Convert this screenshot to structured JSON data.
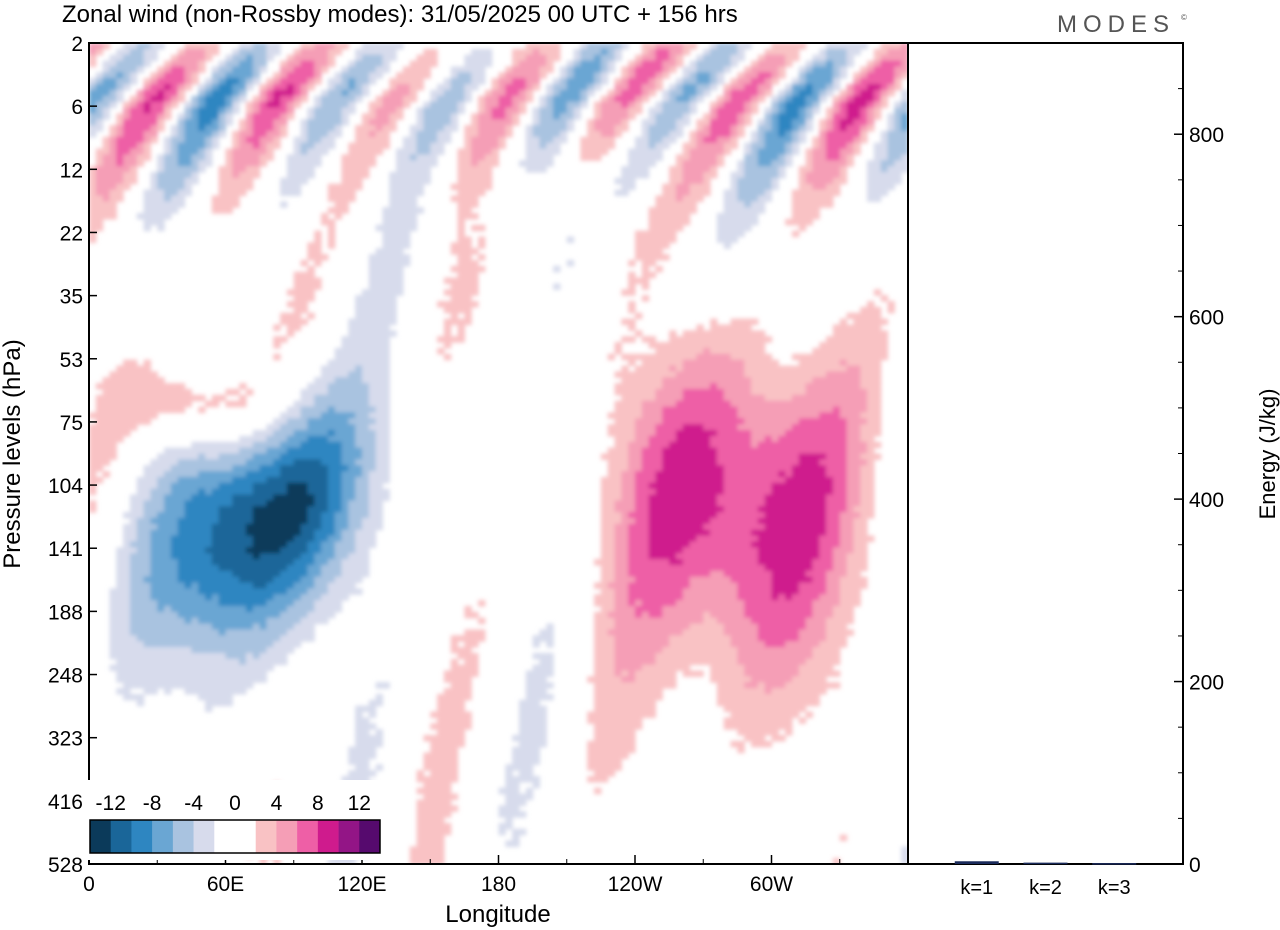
{
  "header": {
    "title": "Zonal wind (non-Rossby modes):  31/05/2025  00 UTC  + 156 hrs",
    "brand": "MODES",
    "brand_mark": "©"
  },
  "chart_data": [
    {
      "type": "heatmap",
      "xlabel": "Longitude",
      "ylabel": "Pressure levels (hPa)",
      "x_ticks": [
        "0",
        "60E",
        "120E",
        "180",
        "120W",
        "60W"
      ],
      "x_tick_degrees": [
        0,
        60,
        120,
        180,
        240,
        300
      ],
      "xlim": [
        0,
        360
      ],
      "y_ticks": [
        "2",
        "6",
        "12",
        "22",
        "35",
        "53",
        "75",
        "104",
        "141",
        "188",
        "248",
        "323",
        "416",
        "528"
      ],
      "colorbar": {
        "tick_labels": [
          "-12",
          "-8",
          "-4",
          "0",
          "4",
          "8",
          "12"
        ],
        "levels": [
          -14,
          -12,
          -10,
          -8,
          -6,
          -4,
          -2,
          0,
          2,
          4,
          6,
          8,
          10,
          12,
          14
        ],
        "colors": [
          "#0b3a5a",
          "#1a6699",
          "#2e86c1",
          "#6aa6d3",
          "#a9c3e0",
          "#d7dbec",
          "#ffffff",
          "#ffffff",
          "#f9c2c4",
          "#f59eb6",
          "#ee5fa6",
          "#cf1b8d",
          "#931586",
          "#560a6e"
        ]
      },
      "features": [
        {
          "kind": "jet",
          "sign": "negative",
          "lon_range": [
            20,
            110
          ],
          "level_range": [
            75,
            250
          ],
          "peak_value": -14,
          "peak_lon": 75,
          "peak_level": 125
        },
        {
          "kind": "jet",
          "sign": "positive",
          "lon_range": [
            200,
            320
          ],
          "level_range": [
            75,
            416
          ],
          "peak_value": 10,
          "peak_lon": 285,
          "peak_level": 115
        },
        {
          "kind": "band",
          "sign": "positive",
          "lon_range": [
            15,
            80
          ],
          "level_range": [
            53,
            90
          ],
          "peak_value": 6
        },
        {
          "kind": "band",
          "sign": "mixed",
          "lon_range": [
            0,
            360
          ],
          "level_range": [
            2,
            12
          ],
          "peak_value": 8
        }
      ]
    },
    {
      "type": "bar",
      "categories": [
        "k=1",
        "k=2",
        "k=3"
      ],
      "values": [
        3,
        1.5,
        1
      ],
      "ylabel": "Energy (J/kg)",
      "ylim": [
        0,
        900
      ],
      "y_ticks": [
        0,
        200,
        400,
        600,
        800
      ],
      "bar_color": "#1a2a5a"
    }
  ]
}
